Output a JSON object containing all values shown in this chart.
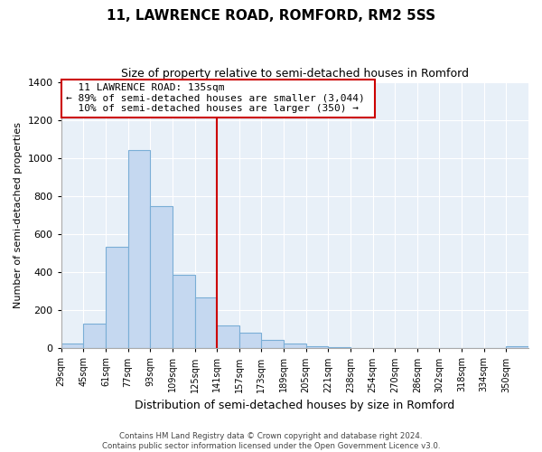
{
  "title": "11, LAWRENCE ROAD, ROMFORD, RM2 5SS",
  "subtitle": "Size of property relative to semi-detached houses in Romford",
  "xlabel": "Distribution of semi-detached houses by size in Romford",
  "ylabel": "Number of semi-detached properties",
  "footer_line1": "Contains HM Land Registry data © Crown copyright and database right 2024.",
  "footer_line2": "Contains public sector information licensed under the Open Government Licence v3.0.",
  "bin_labels": [
    "29sqm",
    "45sqm",
    "61sqm",
    "77sqm",
    "93sqm",
    "109sqm",
    "125sqm",
    "141sqm",
    "157sqm",
    "173sqm",
    "189sqm",
    "205sqm",
    "221sqm",
    "238sqm",
    "254sqm",
    "270sqm",
    "286sqm",
    "302sqm",
    "318sqm",
    "334sqm",
    "350sqm"
  ],
  "bar_values": [
    25,
    130,
    535,
    1040,
    745,
    385,
    265,
    120,
    80,
    42,
    25,
    10,
    5,
    0,
    0,
    0,
    0,
    0,
    0,
    0,
    10
  ],
  "bar_color": "#c5d8f0",
  "bar_edge_color": "#7aaed6",
  "vline_color": "#cc0000",
  "annotation_title": "11 LAWRENCE ROAD: 135sqm",
  "annotation_line1": "← 89% of semi-detached houses are smaller (3,044)",
  "annotation_line2": "10% of semi-detached houses are larger (350) →",
  "ylim": [
    0,
    1400
  ],
  "yticks": [
    0,
    200,
    400,
    600,
    800,
    1000,
    1200,
    1400
  ],
  "background_color": "#e8f0f8"
}
